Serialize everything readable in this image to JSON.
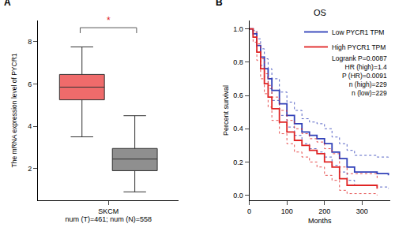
{
  "chart_data": [
    {
      "type": "box",
      "panel": "A",
      "categories": [
        "SKCM"
      ],
      "xlabel": "num (T)=461; num (N)=558",
      "ylabel": "The mRNA expression level of PYCR1",
      "ylim": [
        0.5,
        9
      ],
      "yticks": [
        2,
        4,
        6,
        8
      ],
      "annotations": [
        "*"
      ],
      "series": [
        {
          "color": "#ef6b6b",
          "lowerfence": 3.5,
          "q1": 5.25,
          "median": 5.85,
          "q3": 6.45,
          "upperfence": 7.75
        },
        {
          "color": "#8f8f8f",
          "lowerfence": 0.9,
          "q1": 1.9,
          "median": 2.45,
          "q3": 2.95,
          "upperfence": 4.5
        }
      ]
    },
    {
      "type": "line",
      "panel": "B",
      "title": "OS",
      "xlabel": "Months",
      "ylabel": "Percent survival",
      "x": [
        0,
        10,
        20,
        30,
        40,
        50,
        60,
        80,
        100,
        120,
        140,
        160,
        180,
        200,
        220,
        240,
        260,
        280,
        300,
        340,
        370
      ],
      "xlim": [
        0,
        375
      ],
      "xticks": [
        0,
        100,
        200,
        300
      ],
      "ylim": [
        -0.03,
        1.05
      ],
      "yticks": [
        {
          "value": 0,
          "label": "0.0"
        },
        0.2,
        0.4,
        0.6,
        0.8,
        {
          "value": 1,
          "label": "1.0"
        }
      ],
      "legend": "upper right",
      "annotations": [
        "Logrank P=0.0087",
        "HR (high)=1.4",
        "P (HR)=0.0091",
        "n (high)=229",
        "n (low)=229"
      ],
      "series": [
        {
          "name": "Low PYCR1 TPM",
          "color": "#2f3fb8",
          "line_style": "solid",
          "values": [
            1,
            0.97,
            0.9,
            0.83,
            0.76,
            0.7,
            0.63,
            0.55,
            0.48,
            0.43,
            0.38,
            0.36,
            0.34,
            0.31,
            0.26,
            0.22,
            0.17,
            0.14,
            0.14,
            0.13,
            0.12
          ],
          "ci_low": [
            1,
            0.95,
            0.86,
            0.78,
            0.71,
            0.64,
            0.57,
            0.48,
            0.41,
            0.36,
            0.31,
            0.28,
            0.26,
            0.23,
            0.18,
            0.14,
            0.09,
            0.06,
            0.06,
            0.05,
            0.04
          ],
          "ci_high": [
            1,
            0.99,
            0.94,
            0.88,
            0.82,
            0.76,
            0.7,
            0.62,
            0.56,
            0.51,
            0.46,
            0.44,
            0.43,
            0.4,
            0.35,
            0.31,
            0.27,
            0.24,
            0.24,
            0.23,
            0.22
          ]
        },
        {
          "name": "High PYCR1 TPM",
          "color": "#e02424",
          "line_style": "solid",
          "values": [
            1,
            0.95,
            0.86,
            0.76,
            0.67,
            0.59,
            0.52,
            0.44,
            0.38,
            0.33,
            0.3,
            0.27,
            0.25,
            0.2,
            0.17,
            0.1,
            0.06,
            0.06,
            0.06,
            0.04,
            null
          ],
          "ci_low": [
            1,
            0.92,
            0.81,
            0.7,
            0.61,
            0.53,
            0.45,
            0.37,
            0.31,
            0.26,
            0.23,
            0.2,
            0.17,
            0.12,
            0.09,
            0.03,
            0.01,
            0.01,
            0.01,
            0.0,
            null
          ],
          "ci_high": [
            1,
            0.98,
            0.91,
            0.82,
            0.73,
            0.66,
            0.59,
            0.51,
            0.45,
            0.4,
            0.37,
            0.34,
            0.32,
            0.28,
            0.25,
            0.17,
            0.13,
            0.13,
            0.13,
            0.1,
            null
          ]
        }
      ]
    }
  ]
}
